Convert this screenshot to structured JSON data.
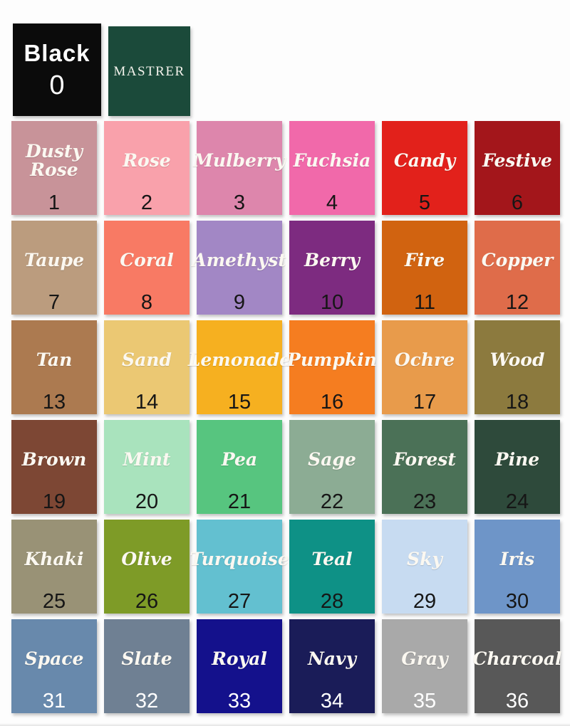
{
  "header": {
    "black": {
      "label": "Black",
      "number": "0",
      "bg": "#0b0b0b",
      "text_color": "#ffffff"
    },
    "brand": {
      "label": "MASTRER",
      "bg": "#1b4a3a",
      "text_color": "#f4f3ec"
    }
  },
  "styles": {
    "swatch_name_color": "#fbf8f1"
  },
  "chart_data": {
    "type": "table",
    "layout": "6x6 grid of numbered fabric color swatches plus Black 0 and brand tile",
    "rows": [
      {
        "name": "Dusty Rose",
        "number": "1",
        "color": "#c89399",
        "number_color": "#161616"
      },
      {
        "name": "Rose",
        "number": "2",
        "color": "#f9a1ab",
        "number_color": "#161616"
      },
      {
        "name": "Mulberry",
        "number": "3",
        "color": "#dd86ac",
        "number_color": "#161616"
      },
      {
        "name": "Fuchsia",
        "number": "4",
        "color": "#f169aa",
        "number_color": "#161616"
      },
      {
        "name": "Candy",
        "number": "5",
        "color": "#e2211b",
        "number_color": "#161616"
      },
      {
        "name": "Festive",
        "number": "6",
        "color": "#a3161b",
        "number_color": "#161616"
      },
      {
        "name": "Taupe",
        "number": "7",
        "color": "#bb9c7e",
        "number_color": "#161616"
      },
      {
        "name": "Coral",
        "number": "8",
        "color": "#f87a64",
        "number_color": "#161616"
      },
      {
        "name": "Amethyst",
        "number": "9",
        "color": "#a287c5",
        "number_color": "#161616"
      },
      {
        "name": "Berry",
        "number": "10",
        "color": "#7d2b80",
        "number_color": "#161616"
      },
      {
        "name": "Fire",
        "number": "11",
        "color": "#d16310",
        "number_color": "#161616"
      },
      {
        "name": "Copper",
        "number": "12",
        "color": "#df6c4a",
        "number_color": "#161616"
      },
      {
        "name": "Tan",
        "number": "13",
        "color": "#ac7a50",
        "number_color": "#161616"
      },
      {
        "name": "Sand",
        "number": "14",
        "color": "#ebc873",
        "number_color": "#161616"
      },
      {
        "name": "Lemonade",
        "number": "15",
        "color": "#f6b020",
        "number_color": "#161616"
      },
      {
        "name": "Pumpkin",
        "number": "16",
        "color": "#f57d20",
        "number_color": "#161616"
      },
      {
        "name": "Ochre",
        "number": "17",
        "color": "#e89b4b",
        "number_color": "#161616"
      },
      {
        "name": "Wood",
        "number": "18",
        "color": "#8c7a3e",
        "number_color": "#161616"
      },
      {
        "name": "Brown",
        "number": "19",
        "color": "#7d4734",
        "number_color": "#161616"
      },
      {
        "name": "Mint",
        "number": "20",
        "color": "#a9e3bd",
        "number_color": "#161616"
      },
      {
        "name": "Pea",
        "number": "21",
        "color": "#57c57f",
        "number_color": "#161616"
      },
      {
        "name": "Sage",
        "number": "22",
        "color": "#8cac94",
        "number_color": "#161616"
      },
      {
        "name": "Forest",
        "number": "23",
        "color": "#4b7157",
        "number_color": "#161616"
      },
      {
        "name": "Pine",
        "number": "24",
        "color": "#2e4a3b",
        "number_color": "#161616"
      },
      {
        "name": "Khaki",
        "number": "25",
        "color": "#999276",
        "number_color": "#161616"
      },
      {
        "name": "Olive",
        "number": "26",
        "color": "#7e9b27",
        "number_color": "#161616"
      },
      {
        "name": "Turquoise",
        "number": "27",
        "color": "#63c0d0",
        "number_color": "#161616"
      },
      {
        "name": "Teal",
        "number": "28",
        "color": "#0e9186",
        "number_color": "#161616"
      },
      {
        "name": "Sky",
        "number": "29",
        "color": "#c7dbf1",
        "number_color": "#161616"
      },
      {
        "name": "Iris",
        "number": "30",
        "color": "#6e95c8",
        "number_color": "#161616"
      },
      {
        "name": "Space",
        "number": "31",
        "color": "#6889ac",
        "number_color": "#ffffff"
      },
      {
        "name": "Slate",
        "number": "32",
        "color": "#6f8093",
        "number_color": "#ffffff"
      },
      {
        "name": "Royal",
        "number": "33",
        "color": "#14118c",
        "number_color": "#ffffff"
      },
      {
        "name": "Navy",
        "number": "34",
        "color": "#1a1c58",
        "number_color": "#ffffff"
      },
      {
        "name": "Gray",
        "number": "35",
        "color": "#a9a9a9",
        "number_color": "#ffffff"
      },
      {
        "name": "Charcoal",
        "number": "36",
        "color": "#585858",
        "number_color": "#ffffff"
      }
    ]
  }
}
